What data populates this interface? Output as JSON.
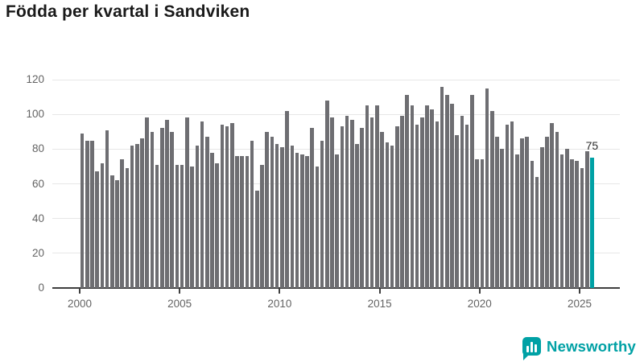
{
  "title": "Födda per kvartal i Sandviken",
  "colors": {
    "bar": "#6e6e72",
    "accent": "#00a1a5",
    "title_text": "#1a1a1a",
    "axis_text": "#636363",
    "gridline": "#e7e7e7",
    "axis_line": "#3f3f3f"
  },
  "chart_data": {
    "type": "bar",
    "title": "Födda per kvartal i Sandviken",
    "xlabel": "",
    "ylabel": "",
    "ylim": [
      0,
      120
    ],
    "y_ticks": [
      0,
      20,
      40,
      60,
      80,
      100,
      120
    ],
    "x_tick_labels": [
      "2000",
      "2005",
      "2010",
      "2015",
      "2020",
      "2025"
    ],
    "grid": "horizontal",
    "legend": "none",
    "start_quarter": "2000-Q1",
    "end_quarter": "2025-Q3",
    "series": [
      {
        "name": "Födda per kvartal",
        "values": [
          89,
          85,
          85,
          67,
          72,
          91,
          65,
          62,
          74,
          69,
          82,
          83,
          86,
          98,
          90,
          71,
          92,
          97,
          90,
          71,
          71,
          98,
          70,
          82,
          96,
          87,
          78,
          72,
          94,
          93,
          95,
          76,
          76,
          76,
          85,
          56,
          71,
          90,
          87,
          83,
          81,
          102,
          82,
          78,
          77,
          76,
          92,
          70,
          85,
          108,
          98,
          77,
          93,
          99,
          97,
          83,
          92,
          105,
          98,
          105,
          90,
          84,
          82,
          93,
          99,
          111,
          105,
          94,
          98,
          105,
          103,
          96,
          116,
          111,
          106,
          88,
          99,
          94,
          111,
          74,
          74,
          115,
          102,
          87,
          80,
          94,
          96,
          77,
          86,
          87,
          73,
          64,
          81,
          87,
          95,
          90,
          77,
          80,
          74,
          73,
          69,
          79,
          75
        ]
      }
    ],
    "highlight": {
      "position": "last",
      "label": "75",
      "value": 75
    }
  },
  "logo": {
    "text": "Newsworthy"
  }
}
